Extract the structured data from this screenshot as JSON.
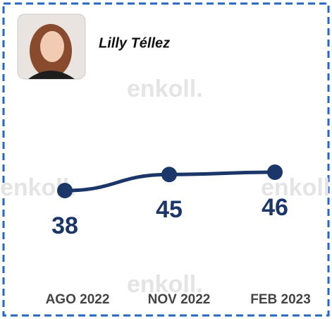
{
  "chart_data": {
    "type": "line",
    "title": "Lilly Téllez",
    "watermark": "enkoll.",
    "categories": [
      "AGO 2022",
      "NOV 2022",
      "FEB 2023"
    ],
    "values": [
      38,
      45,
      46
    ],
    "color": "#1b3668"
  }
}
